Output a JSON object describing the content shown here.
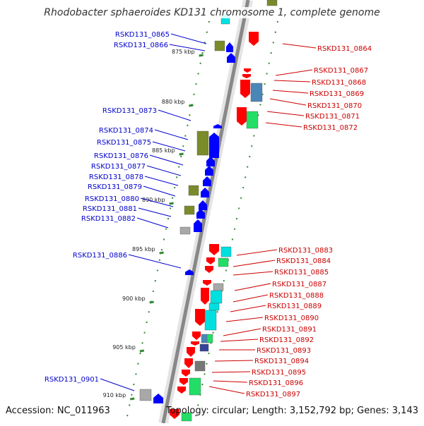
{
  "title": "Rhodobacter sphaeroides KD131 chromosome 1, complete genome",
  "footer": {
    "accession": "Accession: NC_011963",
    "summary": "Topology: circular; Length: 3,152,792 bp; Genes: 3,143"
  },
  "colors": {
    "left_label": "#0000cc",
    "right_label": "#cc0000",
    "backbone": "#9a9a9a",
    "tick": "#338833",
    "gene_fwd": "#0000ff",
    "gene_rev": "#ff0000",
    "olive": "#7a8c2a",
    "cyan": "#00e0e0",
    "steel": "#4a86b8",
    "green": "#22dd66",
    "gray": "#a8a8a8"
  },
  "kbp_markers": [
    "875 kbp",
    "880 kbp",
    "885 kbp",
    "890 kbp",
    "895 kbp",
    "900 kbp",
    "905 kbp",
    "910 kbp"
  ],
  "left_labels": [
    "RSKD131_0865",
    "RSKD131_0866",
    "RSKD131_0873",
    "RSKD131_0874",
    "RSKD131_0875",
    "RSKD131_0876",
    "RSKD131_0877",
    "RSKD131_0878",
    "RSKD131_0879",
    "RSKD131_0880",
    "RSKD131_0881",
    "RSKD131_0882",
    "RSKD131_0886",
    "RSKD131_0901"
  ],
  "right_labels": [
    "RSKD131_0864",
    "RSKD131_0867",
    "RSKD131_0868",
    "RSKD131_0869",
    "RSKD131_0870",
    "RSKD131_0871",
    "RSKD131_0872",
    "RSKD131_0883",
    "RSKD131_0884",
    "RSKD131_0885",
    "RSKD131_0887",
    "RSKD131_0888",
    "RSKD131_0889",
    "RSKD131_0890",
    "RSKD131_0891",
    "RSKD131_0892",
    "RSKD131_0893",
    "RSKD131_0894",
    "RSKD131_0895",
    "RSKD131_0896",
    "RSKD131_0897"
  ]
}
